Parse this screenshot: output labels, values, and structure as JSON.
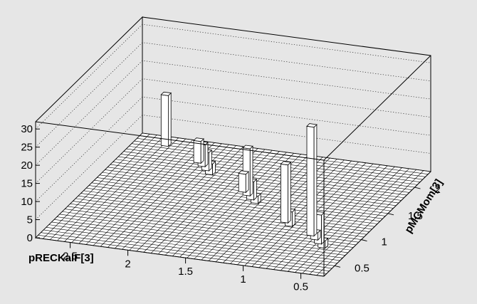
{
  "chart_data": {
    "type": "lego3d",
    "xlabel": "pRECKalF[3]",
    "ylabel": "pMCMom[3]",
    "zlabel": "",
    "xlim": [
      0.3,
      2.8
    ],
    "ylim": [
      0.3,
      2.3
    ],
    "zlim": [
      0,
      32
    ],
    "x_ticks": [
      "0.5",
      "1",
      "1.5",
      "2",
      "2.5"
    ],
    "y_ticks": [
      "0.5",
      "1",
      "1.5",
      "2"
    ],
    "z_ticks": [
      "0",
      "5",
      "10",
      "15",
      "20",
      "25",
      "30"
    ],
    "grid": true,
    "bins_x": 40,
    "bins_y": 40,
    "bars": [
      {
        "x": 2.53,
        "y": 2.16,
        "z": 14
      },
      {
        "x": 2.15,
        "y": 1.95,
        "z": 6
      },
      {
        "x": 2.09,
        "y": 1.9,
        "z": 6
      },
      {
        "x": 2.03,
        "y": 1.84,
        "z": 5
      },
      {
        "x": 1.97,
        "y": 1.78,
        "z": 3
      },
      {
        "x": 1.58,
        "y": 1.56,
        "z": 5
      },
      {
        "x": 1.52,
        "y": 1.51,
        "z": 13
      },
      {
        "x": 1.46,
        "y": 1.45,
        "z": 5
      },
      {
        "x": 1.4,
        "y": 1.4,
        "z": 2
      },
      {
        "x": 1.02,
        "y": 1.14,
        "z": 16
      },
      {
        "x": 0.96,
        "y": 1.09,
        "z": 4
      },
      {
        "x": 0.72,
        "y": 0.98,
        "z": 30
      },
      {
        "x": 0.66,
        "y": 0.92,
        "z": 2
      },
      {
        "x": 0.6,
        "y": 0.86,
        "z": 8
      },
      {
        "x": 0.54,
        "y": 0.8,
        "z": 2
      }
    ]
  }
}
